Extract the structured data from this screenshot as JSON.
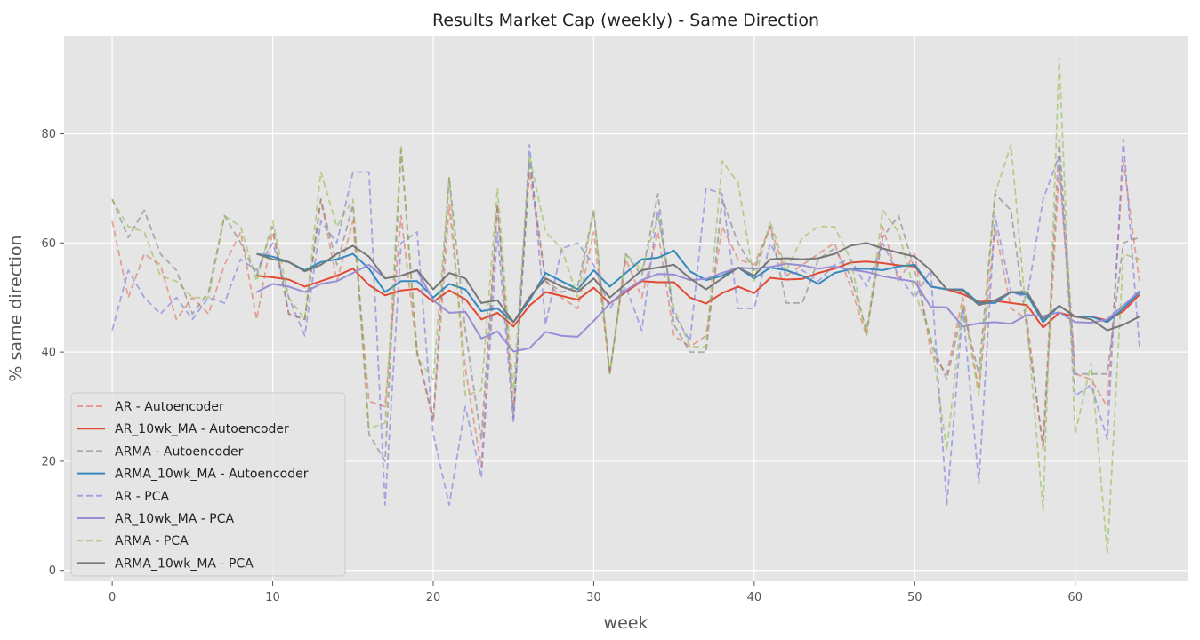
{
  "chart_data": {
    "type": "line",
    "title": "Results Market Cap (weekly) - Same Direction",
    "xlabel": "week",
    "ylabel": "% same direction",
    "xlim": [
      -3,
      67
    ],
    "ylim": [
      -2,
      98
    ],
    "xticks": [
      0,
      10,
      20,
      30,
      40,
      50,
      60
    ],
    "yticks": [
      0,
      20,
      40,
      60,
      80
    ],
    "grid": true,
    "legend_position": "lower-left",
    "series": [
      {
        "name": "AR - Autoencoder",
        "color": "#E24A33",
        "dashed": true,
        "opacity": 0.45,
        "x": [
          0,
          1,
          2,
          3,
          4,
          5,
          6,
          7,
          8,
          9,
          10,
          11,
          12,
          13,
          14,
          15,
          16,
          17,
          18,
          19,
          20,
          21,
          22,
          23,
          24,
          25,
          26,
          27,
          28,
          29,
          30,
          31,
          32,
          33,
          34,
          35,
          36,
          37,
          38,
          39,
          40,
          41,
          42,
          43,
          44,
          45,
          46,
          47,
          48,
          49,
          50,
          51,
          52,
          53,
          54,
          55,
          56,
          57,
          58,
          59,
          60,
          61,
          62,
          63,
          64
        ],
        "values": [
          64,
          50,
          58,
          56,
          46,
          50,
          47,
          56,
          62,
          46,
          62,
          47,
          46,
          68,
          53,
          64,
          31,
          30,
          65,
          40,
          27,
          67,
          37,
          19,
          67,
          30,
          73,
          53,
          50,
          48,
          62,
          36,
          57,
          50,
          62,
          43,
          41,
          43,
          63,
          57,
          56,
          63,
          54,
          56,
          58,
          60,
          52,
          43,
          63,
          53,
          58,
          40,
          36,
          50,
          33,
          63,
          48,
          46,
          22,
          74,
          36,
          35,
          30,
          75,
          53
        ]
      },
      {
        "name": "AR_10wk_MA - Autoencoder",
        "color": "#E24A33",
        "dashed": false,
        "opacity": 1,
        "x": [
          9,
          10,
          11,
          12,
          13,
          14,
          15,
          16,
          17,
          18,
          19,
          20,
          21,
          22,
          23,
          24,
          25,
          26,
          27,
          28,
          29,
          30,
          31,
          32,
          33,
          34,
          35,
          36,
          37,
          38,
          39,
          40,
          41,
          42,
          43,
          44,
          45,
          46,
          47,
          48,
          49,
          50,
          51,
          52,
          53,
          54,
          55,
          56,
          57,
          58,
          59,
          60,
          61,
          62,
          63,
          64
        ],
        "values": [
          54,
          53.7,
          53.3,
          52,
          53,
          54,
          55.3,
          52.3,
          50.4,
          51.3,
          51.6,
          49.2,
          51.3,
          49.7,
          46,
          47.2,
          44.7,
          48.5,
          51,
          50.3,
          49.6,
          51.8,
          48.9,
          51,
          53,
          52.8,
          52.8,
          50,
          48.9,
          50.8,
          52,
          50.8,
          53.6,
          53.3,
          53.4,
          54.5,
          55.3,
          56.4,
          56.6,
          56.3,
          55.9,
          55.7,
          52,
          51.5,
          50.6,
          49.2,
          49.4,
          49,
          48.6,
          44.5,
          47.2,
          46.5,
          46.5,
          45.8,
          47.5,
          50.5
        ]
      },
      {
        "name": "ARMA - Autoencoder",
        "color": "#777777",
        "dashed": true,
        "opacity": 0.55,
        "x": [
          0,
          1,
          2,
          3,
          4,
          5,
          6,
          7,
          8,
          9,
          10,
          11,
          12,
          13,
          14,
          15,
          16,
          17,
          18,
          19,
          20,
          21,
          22,
          23,
          24,
          25,
          26,
          27,
          28,
          29,
          30,
          31,
          32,
          33,
          34,
          35,
          36,
          37,
          38,
          39,
          40,
          41,
          42,
          43,
          44,
          45,
          46,
          47,
          48,
          49,
          50,
          51,
          52,
          53,
          54,
          55,
          56,
          57,
          58,
          59,
          60,
          61,
          62,
          63,
          64
        ],
        "values": [
          68,
          61,
          66,
          58,
          55,
          47,
          51,
          65,
          60,
          54,
          63,
          47,
          46,
          68,
          56,
          67,
          25,
          20,
          77,
          40,
          28,
          72,
          44,
          24,
          67,
          28,
          75,
          53,
          51,
          52,
          66,
          36,
          58,
          54,
          69,
          45,
          40,
          40,
          68,
          60,
          55,
          63,
          49,
          49,
          57,
          59,
          54,
          44,
          61,
          65,
          55,
          42,
          35,
          48,
          36,
          69,
          66,
          44,
          23,
          79,
          36,
          36,
          36,
          60,
          61
        ]
      },
      {
        "name": "ARMA_10wk_MA - Autoencoder",
        "color": "#348ABD",
        "dashed": false,
        "opacity": 1,
        "x": [
          9,
          10,
          11,
          12,
          13,
          14,
          15,
          16,
          17,
          18,
          19,
          20,
          21,
          22,
          23,
          24,
          25,
          26,
          27,
          28,
          29,
          30,
          31,
          32,
          33,
          34,
          35,
          36,
          37,
          38,
          39,
          40,
          41,
          42,
          43,
          44,
          45,
          46,
          47,
          48,
          49,
          50,
          51,
          52,
          53,
          54,
          55,
          56,
          57,
          58,
          59,
          60,
          61,
          62,
          63,
          64
        ],
        "values": [
          58,
          57.5,
          56.5,
          55,
          56.5,
          57,
          58,
          55.3,
          51,
          53,
          53,
          50,
          52.5,
          51.5,
          47.5,
          48,
          45.5,
          49.5,
          54.5,
          53,
          51.5,
          55,
          52,
          54.5,
          57,
          57.3,
          58.6,
          54.8,
          53.2,
          54,
          55.5,
          53.5,
          55.5,
          55,
          54,
          52.5,
          54.5,
          55.2,
          55.3,
          55,
          55.7,
          56,
          52,
          51.5,
          51.5,
          49,
          49,
          51,
          50.5,
          45.5,
          48.5,
          46.5,
          46.5,
          45.5,
          48,
          51
        ]
      },
      {
        "name": "AR - PCA",
        "color": "#6D6DDE",
        "dashed": true,
        "opacity": 0.55,
        "x": [
          0,
          1,
          2,
          3,
          4,
          5,
          6,
          7,
          8,
          9,
          10,
          11,
          12,
          13,
          14,
          15,
          16,
          17,
          18,
          19,
          20,
          21,
          22,
          23,
          24,
          25,
          26,
          27,
          28,
          29,
          30,
          31,
          32,
          33,
          34,
          35,
          36,
          37,
          38,
          39,
          40,
          41,
          42,
          43,
          44,
          45,
          46,
          47,
          48,
          49,
          50,
          51,
          52,
          53,
          54,
          55,
          56,
          57,
          58,
          59,
          60,
          61,
          62,
          63,
          64
        ],
        "values": [
          44,
          55,
          50,
          47,
          50,
          46,
          50,
          49,
          57,
          55,
          60,
          50,
          43,
          64,
          60,
          73,
          73,
          12,
          60,
          62,
          25,
          12,
          30,
          17,
          62,
          27,
          78,
          45,
          59,
          60,
          56,
          48,
          52,
          44,
          66,
          47,
          42,
          70,
          69,
          48,
          48,
          60,
          54,
          55,
          53,
          56,
          57,
          52,
          60,
          54,
          50,
          55,
          12,
          48,
          16,
          65,
          51,
          50,
          68,
          76,
          32,
          34,
          24,
          79,
          41
        ]
      },
      {
        "name": "AR_10wk_MA - PCA",
        "color": "#988ED5",
        "dashed": false,
        "opacity": 1,
        "x": [
          9,
          10,
          11,
          12,
          13,
          14,
          15,
          16,
          17,
          18,
          19,
          20,
          21,
          22,
          23,
          24,
          25,
          26,
          27,
          28,
          29,
          30,
          31,
          32,
          33,
          34,
          35,
          36,
          37,
          38,
          39,
          40,
          41,
          42,
          43,
          44,
          45,
          46,
          47,
          48,
          49,
          50,
          51,
          52,
          53,
          54,
          55,
          56,
          57,
          58,
          59,
          60,
          61,
          62,
          63,
          64
        ],
        "values": [
          51,
          52.5,
          52,
          51,
          52.5,
          53,
          54.5,
          56,
          53.5,
          54,
          55,
          49.5,
          47.2,
          47.4,
          42.5,
          43.8,
          40.1,
          40.7,
          43.7,
          43,
          42.8,
          45.7,
          48.9,
          51.3,
          53.2,
          54.3,
          54.2,
          53.2,
          53.4,
          54.5,
          55.5,
          55.3,
          55.6,
          56.2,
          55.9,
          55.3,
          55.7,
          55.1,
          54.7,
          53.9,
          53.4,
          52.9,
          48.3,
          48.2,
          44.7,
          45.3,
          45.5,
          45.2,
          46.8,
          46.6,
          47.3,
          45.5,
          45.4,
          46,
          48.5,
          51.2
        ]
      },
      {
        "name": "ARMA - PCA",
        "color": "#8EBA42",
        "dashed": true,
        "opacity": 0.55,
        "x": [
          0,
          1,
          2,
          3,
          4,
          5,
          6,
          7,
          8,
          9,
          10,
          11,
          12,
          13,
          14,
          15,
          16,
          17,
          18,
          19,
          20,
          21,
          22,
          23,
          24,
          25,
          26,
          27,
          28,
          29,
          30,
          31,
          32,
          33,
          34,
          35,
          36,
          37,
          38,
          39,
          40,
          41,
          42,
          43,
          44,
          45,
          46,
          47,
          48,
          49,
          50,
          51,
          52,
          53,
          54,
          55,
          56,
          57,
          58,
          59,
          60,
          61,
          62,
          63,
          64
        ],
        "values": [
          68,
          63,
          62,
          54,
          53,
          50,
          50,
          65,
          63,
          53,
          64,
          50,
          46,
          73,
          63,
          68,
          26,
          27,
          78,
          39,
          35,
          72,
          32,
          33,
          70,
          33,
          76,
          62,
          59,
          50,
          66,
          36,
          58,
          55,
          65,
          48,
          41,
          41,
          75,
          71,
          53,
          64,
          55,
          61,
          63,
          63,
          57,
          43,
          66,
          62,
          51,
          43,
          22,
          49,
          32,
          69,
          78,
          45,
          11,
          94,
          25,
          38,
          3,
          58,
          57
        ]
      },
      {
        "name": "ARMA_10wk_MA - PCA",
        "color": "#777777",
        "dashed": false,
        "opacity": 1,
        "x": [
          9,
          10,
          11,
          12,
          13,
          14,
          15,
          16,
          17,
          18,
          19,
          20,
          21,
          22,
          23,
          24,
          25,
          26,
          27,
          28,
          29,
          30,
          31,
          32,
          33,
          34,
          35,
          36,
          37,
          38,
          39,
          40,
          41,
          42,
          43,
          44,
          45,
          46,
          47,
          48,
          49,
          50,
          51,
          52,
          53,
          54,
          55,
          56,
          57,
          58,
          59,
          60,
          61,
          62,
          63,
          64
        ],
        "values": [
          58,
          57,
          56.5,
          54.8,
          56,
          58,
          59.5,
          57.5,
          53.5,
          54,
          55,
          51.5,
          54.5,
          53.5,
          49,
          49.5,
          45.5,
          50,
          53.5,
          52,
          51,
          53.5,
          50,
          52.5,
          55,
          55.5,
          56,
          53.5,
          51.5,
          53.5,
          55.5,
          54,
          57,
          57.2,
          57,
          57.2,
          58,
          59.5,
          60,
          59,
          58.2,
          57.5,
          55,
          51.5,
          51.3,
          48.6,
          49.5,
          51,
          51,
          46,
          48.5,
          46.5,
          46,
          44,
          45,
          46.5
        ]
      }
    ]
  }
}
